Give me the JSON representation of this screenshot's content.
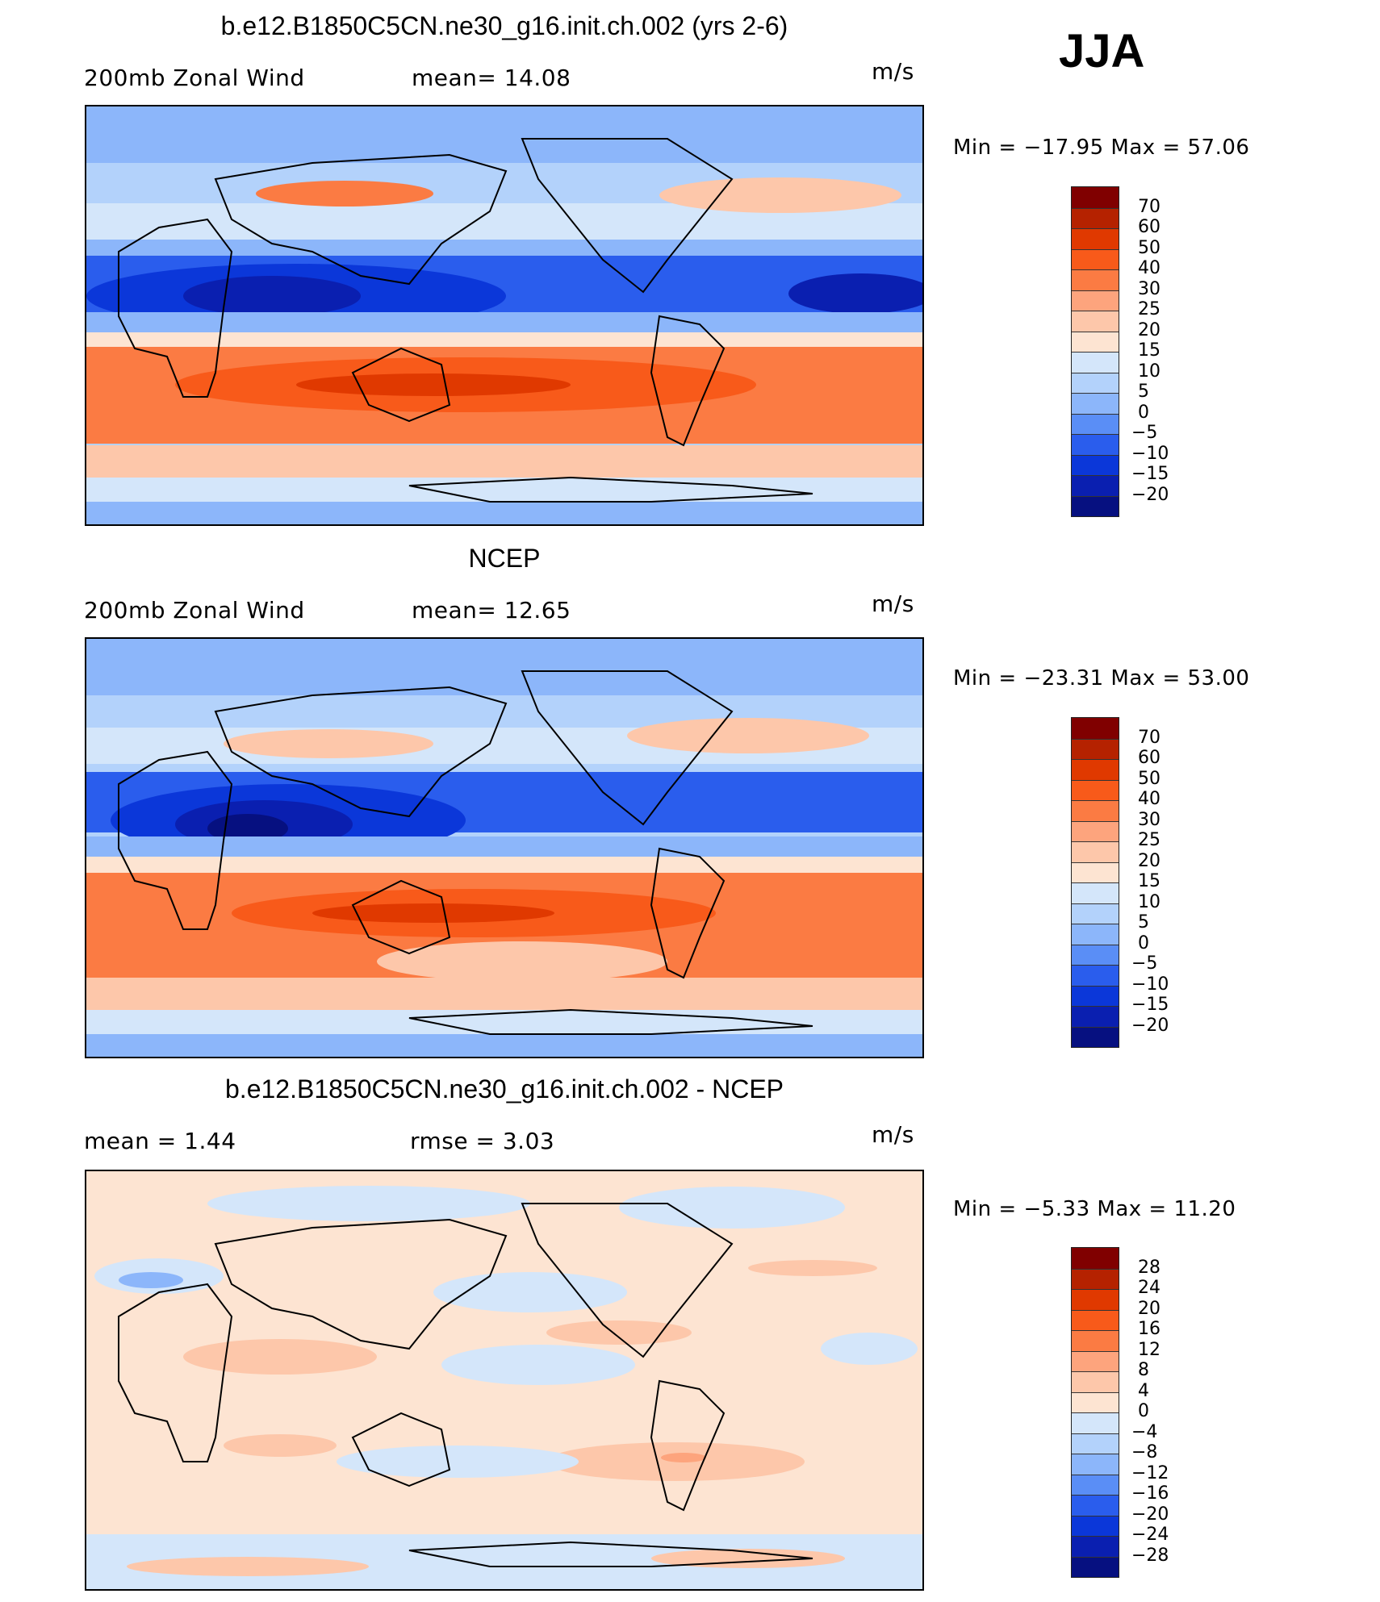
{
  "season": "JJA",
  "colors": {
    "main_scale": [
      "#800000",
      "#b52200",
      "#e03900",
      "#f85a1a",
      "#fb7b43",
      "#fda47d",
      "#fdc7aa",
      "#fde4d2",
      "#d4e6fa",
      "#b3d2fb",
      "#8cb6fa",
      "#5a8ef6",
      "#2a5ded",
      "#0b37d9",
      "#0a1fb0",
      "#061080"
    ],
    "diff_scale": [
      "#800000",
      "#b52200",
      "#e03900",
      "#f85a1a",
      "#fb7b43",
      "#fda47d",
      "#fdc7aa",
      "#fde4d2",
      "#d4e6fa",
      "#b3d2fb",
      "#8cb6fa",
      "#5a8ef6",
      "#2a5ded",
      "#0b37d9",
      "#0a1fb0",
      "#061080"
    ]
  },
  "panels": [
    {
      "title": "b.e12.B1850C5CN.ne30_g16.init.ch.002 (yrs 2-6)",
      "left_label": "200mb  Zonal  Wind",
      "center_label": "mean=   14.08",
      "units": "m/s",
      "min_label": "Min  =  −17.95  Max  =     57.06",
      "colorbar_ticks": [
        "70",
        "60",
        "50",
        "40",
        "30",
        "25",
        "20",
        "15",
        "10",
        "5",
        "0",
        "−5",
        "−10",
        "−15",
        "−20"
      ]
    },
    {
      "title": "NCEP",
      "left_label": "200mb  Zonal  Wind",
      "center_label": "mean=   12.65",
      "units": "m/s",
      "min_label": "Min  =  −23.31  Max  =     53.00",
      "colorbar_ticks": [
        "70",
        "60",
        "50",
        "40",
        "30",
        "25",
        "20",
        "15",
        "10",
        "5",
        "0",
        "−5",
        "−10",
        "−15",
        "−20"
      ]
    },
    {
      "title": "b.e12.B1850C5CN.ne30_g16.init.ch.002 - NCEP",
      "left_label": "mean  =      1.44",
      "center_label": "rmse  =      3.03",
      "units": "m/s",
      "min_label": "Min  =      −5.33  Max  =     11.20",
      "colorbar_ticks": [
        "28",
        "24",
        "20",
        "16",
        "12",
        "8",
        "4",
        "0",
        "−4",
        "−8",
        "−12",
        "−16",
        "−20",
        "−24",
        "−28"
      ]
    }
  ],
  "chart_data": [
    {
      "type": "heatmap",
      "title": "b.e12.B1850C5CN.ne30_g16.init.ch.002 (yrs 2-6)",
      "variable": "200mb Zonal Wind",
      "units": "m/s",
      "mean": 14.08,
      "min": -17.95,
      "max": 57.06,
      "contour_levels": [
        -20,
        -15,
        -10,
        -5,
        0,
        5,
        10,
        15,
        20,
        25,
        30,
        40,
        50,
        60,
        70
      ]
    },
    {
      "type": "heatmap",
      "title": "NCEP",
      "variable": "200mb Zonal Wind",
      "units": "m/s",
      "mean": 12.65,
      "min": -23.31,
      "max": 53.0,
      "contour_levels": [
        -20,
        -15,
        -10,
        -5,
        0,
        5,
        10,
        15,
        20,
        25,
        30,
        40,
        50,
        60,
        70
      ]
    },
    {
      "type": "heatmap",
      "title": "b.e12.B1850C5CN.ne30_g16.init.ch.002 - NCEP",
      "variable": "200mb Zonal Wind difference",
      "units": "m/s",
      "mean": 1.44,
      "rmse": 3.03,
      "min": -5.33,
      "max": 11.2,
      "contour_levels": [
        -28,
        -24,
        -20,
        -16,
        -12,
        -8,
        -4,
        0,
        4,
        8,
        12,
        16,
        20,
        24,
        28
      ]
    }
  ]
}
